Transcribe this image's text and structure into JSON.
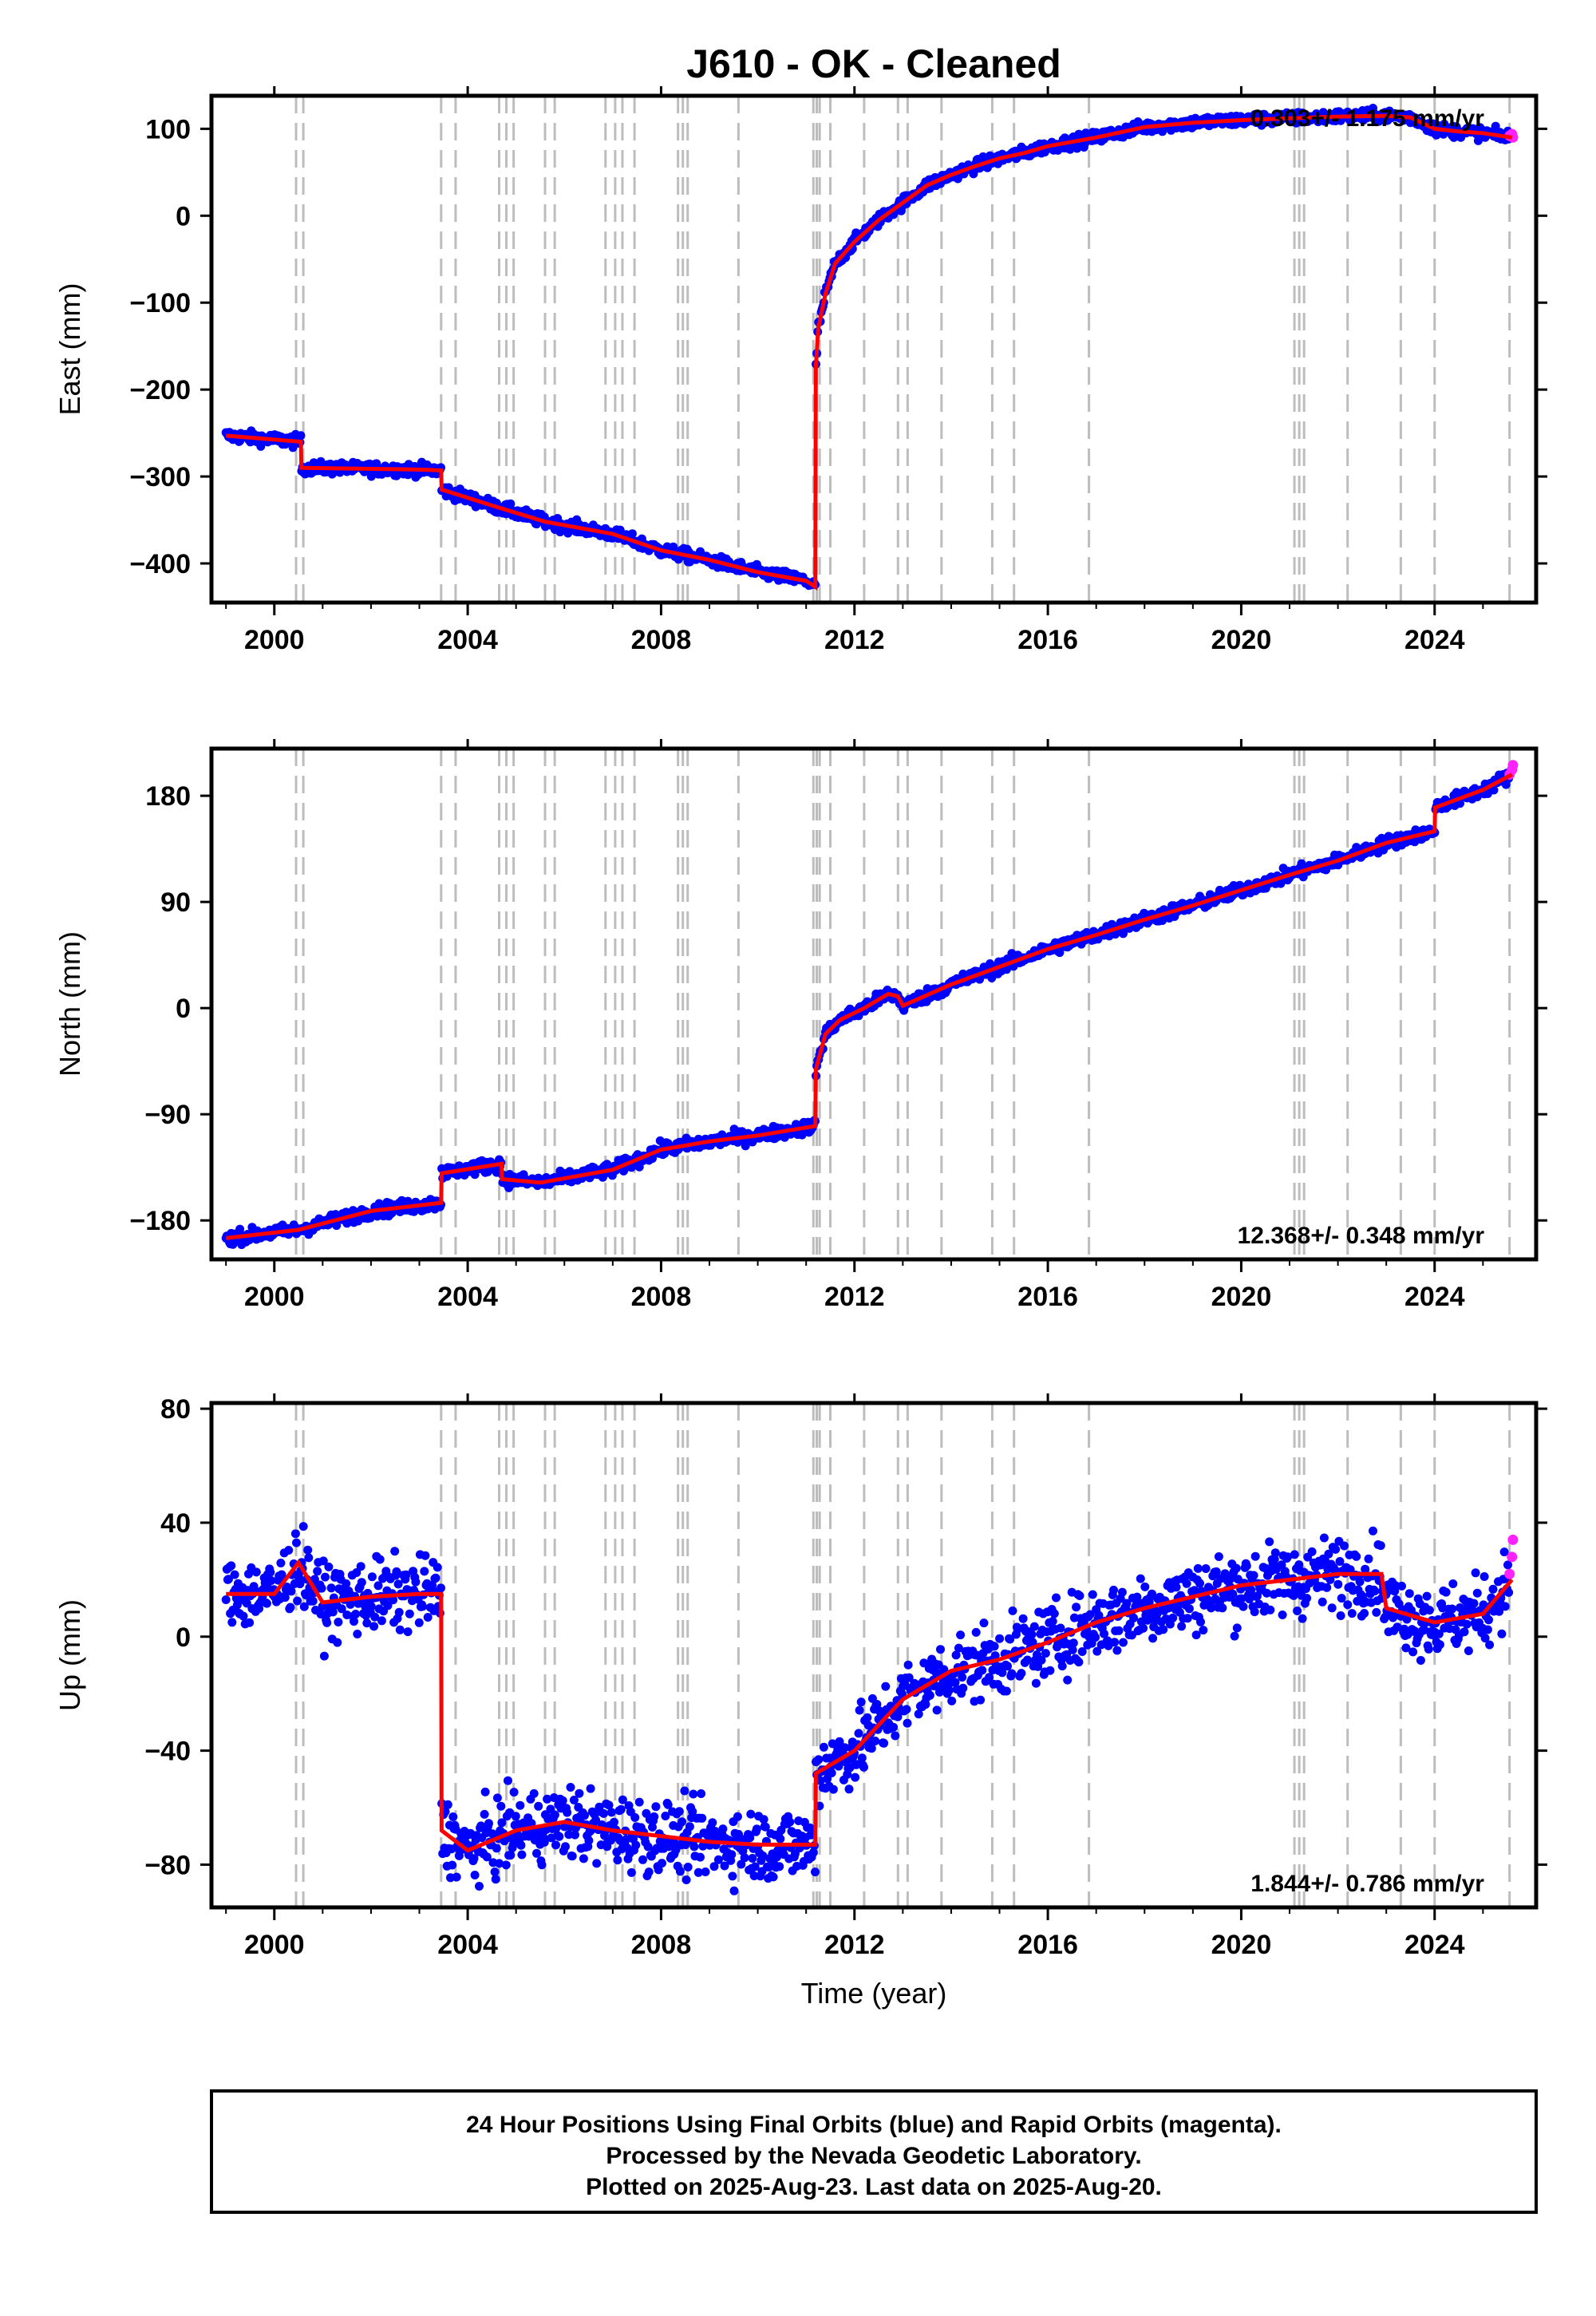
{
  "title": "J610  - OK - Cleaned",
  "xlabel": "Time (year)",
  "colors": {
    "final_orbits": "#0000ff",
    "rapid_orbits": "#ff22ff",
    "model": "#ff0000",
    "event_lines": "#bdbdbd",
    "frame": "#000000"
  },
  "footer": {
    "line1": "24 Hour Positions Using Final Orbits (blue) and Rapid Orbits (magenta).",
    "line2": "Processed by the Nevada Geodetic Laboratory.",
    "line3": "Plotted on 2025-Aug-23. Last data on 2025-Aug-20."
  },
  "chart_data": [
    {
      "type": "scatter",
      "id": "east",
      "ylabel": "East (mm)",
      "rate_label": "0.303+/- 1.175 mm/yr",
      "xlim": [
        1998.7,
        2026.1
      ],
      "ylim": [
        -445,
        138
      ],
      "xticks": [
        2000,
        2004,
        2008,
        2012,
        2016,
        2020,
        2024
      ],
      "yticks": [
        -400,
        -300,
        -200,
        -100,
        0,
        100
      ],
      "ytick_labels": [
        "−400",
        "−300",
        "−200",
        "−100",
        "0",
        "100"
      ],
      "event_lines": [
        2000.45,
        2000.6,
        2003.45,
        2003.75,
        2004.65,
        2004.8,
        2004.95,
        2005.6,
        2005.8,
        2006.85,
        2007.05,
        2007.2,
        2007.45,
        2008.35,
        2008.45,
        2008.55,
        2009.6,
        2011.15,
        2011.22,
        2011.28,
        2011.5,
        2012.2,
        2012.9,
        2013.1,
        2013.8,
        2014.85,
        2015.3,
        2016.85,
        2021.1,
        2021.2,
        2021.3,
        2022.2,
        2023.3,
        2024.0,
        2025.55
      ],
      "series": [
        {
          "name": "model",
          "x": [
            1999.0,
            2000.55,
            2000.56,
            2003.0,
            2003.45,
            2003.46,
            2004.6,
            2005.6,
            2007.0,
            2008.0,
            2009.0,
            2010.0,
            2011.0,
            2011.19,
            2011.2,
            2011.25,
            2011.4,
            2011.6,
            2012.0,
            2012.5,
            2013.0,
            2013.5,
            2014.0,
            2014.5,
            2015.0,
            2015.5,
            2016.0,
            2017.0,
            2018.0,
            2019.0,
            2020.0,
            2021.0,
            2022.0,
            2023.0,
            2023.5,
            2024.0,
            2024.5,
            2025.0,
            2025.6
          ],
          "y": [
            -253,
            -260,
            -290,
            -292,
            -293,
            -315,
            -335,
            -352,
            -366,
            -385,
            -396,
            -410,
            -420,
            -427,
            -175,
            -130,
            -90,
            -55,
            -30,
            -5,
            15,
            35,
            47,
            57,
            66,
            72,
            80,
            90,
            102,
            107,
            110,
            112,
            114,
            115,
            113,
            100,
            97,
            95,
            90
          ]
        }
      ],
      "scatter_noise": 5,
      "rapid_points": [
        {
          "x": 2025.55,
          "y": 92
        },
        {
          "x": 2025.6,
          "y": 94
        },
        {
          "x": 2025.62,
          "y": 90
        }
      ]
    },
    {
      "type": "scatter",
      "id": "north",
      "ylabel": "North (mm)",
      "rate_label": "12.368+/- 0.348 mm/yr",
      "xlim": [
        1998.7,
        2026.1
      ],
      "ylim": [
        -213,
        220
      ],
      "xticks": [
        2000,
        2004,
        2008,
        2012,
        2016,
        2020,
        2024
      ],
      "yticks": [
        -180,
        -90,
        0,
        90,
        180
      ],
      "ytick_labels": [
        "−180",
        "−90",
        "0",
        "90",
        "180"
      ],
      "event_lines": [
        2000.45,
        2000.6,
        2003.45,
        2003.75,
        2004.65,
        2004.8,
        2004.95,
        2005.6,
        2005.8,
        2006.85,
        2007.05,
        2007.2,
        2007.45,
        2008.35,
        2008.45,
        2008.55,
        2009.6,
        2011.15,
        2011.22,
        2011.28,
        2011.5,
        2012.2,
        2012.9,
        2013.1,
        2013.8,
        2014.85,
        2015.3,
        2016.85,
        2021.1,
        2021.2,
        2021.3,
        2022.2,
        2023.3,
        2024.0,
        2025.55
      ],
      "series": [
        {
          "name": "model",
          "x": [
            1999.0,
            2000.5,
            2002.0,
            2003.45,
            2003.46,
            2004.7,
            2004.71,
            2005.5,
            2007.0,
            2008.0,
            2009.0,
            2010.0,
            2011.19,
            2011.2,
            2011.4,
            2011.7,
            2012.2,
            2012.7,
            2012.9,
            2013.0,
            2014.0,
            2015.0,
            2016.0,
            2017.0,
            2018.0,
            2019.0,
            2020.0,
            2021.0,
            2022.0,
            2023.0,
            2024.0,
            2024.01,
            2025.0,
            2025.6
          ],
          "y": [
            -195,
            -188,
            -172,
            -165,
            -140,
            -132,
            -145,
            -148,
            -137,
            -120,
            -113,
            -108,
            -100,
            -52,
            -22,
            -10,
            0,
            12,
            10,
            2,
            20,
            35,
            50,
            62,
            75,
            87,
            100,
            113,
            125,
            140,
            150,
            170,
            185,
            198
          ]
        }
      ],
      "scatter_noise": 4,
      "rapid_points": [
        {
          "x": 2025.55,
          "y": 198
        },
        {
          "x": 2025.6,
          "y": 202
        },
        {
          "x": 2025.62,
          "y": 206
        }
      ]
    },
    {
      "type": "scatter",
      "id": "up",
      "ylabel": "Up (mm)",
      "rate_label": "1.844+/- 0.786 mm/yr",
      "xlim": [
        1998.7,
        2026.1
      ],
      "ylim": [
        -95,
        82
      ],
      "xticks": [
        2000,
        2004,
        2008,
        2012,
        2016,
        2020,
        2024
      ],
      "yticks": [
        -80,
        -40,
        0,
        40,
        80
      ],
      "ytick_labels": [
        "−80",
        "−40",
        "0",
        "40",
        "80"
      ],
      "event_lines": [
        2000.45,
        2000.6,
        2003.45,
        2003.75,
        2004.65,
        2004.8,
        2004.95,
        2005.6,
        2005.8,
        2006.85,
        2007.05,
        2007.2,
        2007.45,
        2008.35,
        2008.45,
        2008.55,
        2009.6,
        2011.15,
        2011.22,
        2011.28,
        2011.5,
        2012.2,
        2012.9,
        2013.1,
        2013.8,
        2014.85,
        2015.3,
        2016.85,
        2021.1,
        2021.2,
        2021.3,
        2022.2,
        2023.3,
        2024.0,
        2025.55
      ],
      "series": [
        {
          "name": "model",
          "x": [
            1999.0,
            2000.0,
            2000.5,
            2001.0,
            2002.0,
            2003.0,
            2003.45,
            2003.46,
            2004.0,
            2005.0,
            2006.0,
            2007.0,
            2008.0,
            2009.0,
            2010.0,
            2011.19,
            2011.2,
            2012.0,
            2013.0,
            2014.0,
            2015.0,
            2016.0,
            2017.0,
            2018.0,
            2019.0,
            2020.0,
            2021.0,
            2022.0,
            2022.9,
            2023.0,
            2024.0,
            2025.0,
            2025.6
          ],
          "y": [
            15,
            15,
            26,
            12,
            14,
            15,
            15,
            -68,
            -75,
            -68,
            -65,
            -68,
            -70,
            -72,
            -73,
            -73,
            -48,
            -40,
            -22,
            -12,
            -8,
            -2,
            5,
            10,
            14,
            18,
            20,
            22,
            22,
            10,
            5,
            8,
            20
          ]
        }
      ],
      "scatter_noise": 9,
      "rapid_points": [
        {
          "x": 2025.55,
          "y": 22
        },
        {
          "x": 2025.6,
          "y": 28
        },
        {
          "x": 2025.62,
          "y": 34
        }
      ]
    }
  ]
}
